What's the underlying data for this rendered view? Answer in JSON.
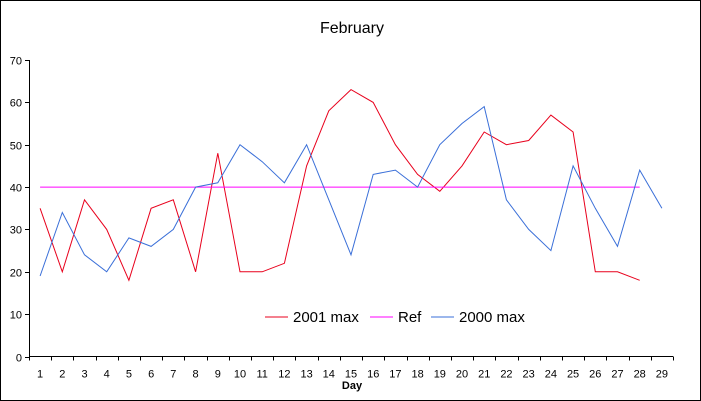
{
  "chart_data": {
    "type": "line",
    "title": "February",
    "xlabel": "Day",
    "ylabel": "",
    "ylim": [
      0,
      70
    ],
    "yticks": [
      0,
      10,
      20,
      30,
      40,
      50,
      60,
      70
    ],
    "x": [
      1,
      2,
      3,
      4,
      5,
      6,
      7,
      8,
      9,
      10,
      11,
      12,
      13,
      14,
      15,
      16,
      17,
      18,
      19,
      20,
      21,
      22,
      23,
      24,
      25,
      26,
      27,
      28,
      29
    ],
    "grid": false,
    "legend": "bottom-center",
    "series": [
      {
        "name": "2001 max",
        "color": "#e8001c",
        "values": [
          35,
          20,
          37,
          30,
          18,
          35,
          37,
          20,
          48,
          20,
          20,
          22,
          45,
          58,
          63,
          60,
          50,
          43,
          39,
          45,
          53,
          50,
          51,
          57,
          53,
          20,
          20,
          18,
          null
        ]
      },
      {
        "name": "Ref",
        "color": "#ff00ff",
        "values": [
          40,
          40,
          40,
          40,
          40,
          40,
          40,
          40,
          40,
          40,
          40,
          40,
          40,
          40,
          40,
          40,
          40,
          40,
          40,
          40,
          40,
          40,
          40,
          40,
          40,
          40,
          40,
          40,
          null
        ]
      },
      {
        "name": "2000 max",
        "color": "#3a6fd8",
        "values": [
          19,
          34,
          24,
          20,
          28,
          26,
          30,
          40,
          41,
          50,
          46,
          41,
          50,
          37,
          24,
          43,
          44,
          40,
          50,
          55,
          59,
          37,
          30,
          25,
          45,
          35,
          26,
          44,
          35
        ]
      }
    ]
  }
}
